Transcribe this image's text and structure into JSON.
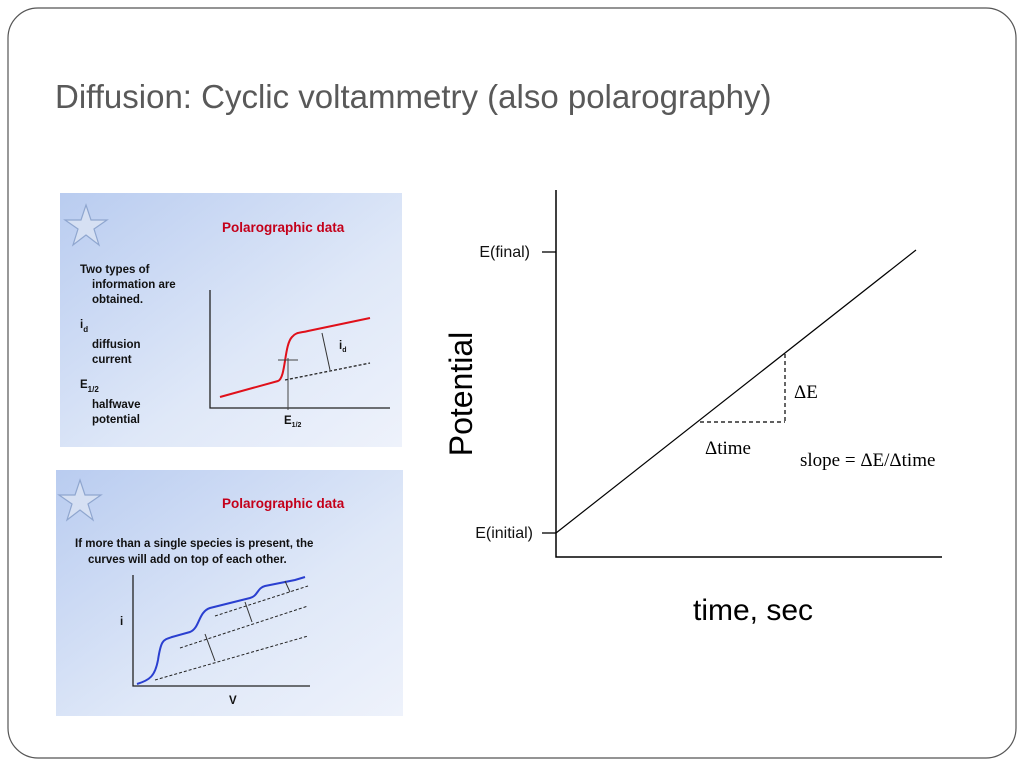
{
  "title": "Diffusion: Cyclic voltammetry (also polarography)",
  "panel_1": {
    "heading": "Polarographic data",
    "intro": [
      "Two types of",
      "information are",
      "obtained."
    ],
    "id_symbol": "i",
    "id_sub": "d",
    "id_desc": [
      "diffusion",
      "current"
    ],
    "e_symbol": "E",
    "e_sub": "1/2",
    "e_desc": [
      "halfwave",
      "potential"
    ]
  },
  "panel_2": {
    "heading": "Polarographic data",
    "intro": [
      "If more than a single species is present, the",
      "curves will add on top of each other."
    ],
    "y_axis": "i",
    "x_axis": "V"
  },
  "diagram": {
    "y_label": "Potential",
    "x_label": "time, sec",
    "e_final": "E(final)",
    "e_initial": "E(initial)",
    "delta_e": "ΔE",
    "delta_time": "Δtime",
    "slope": "slope = ΔE/Δtime"
  }
}
